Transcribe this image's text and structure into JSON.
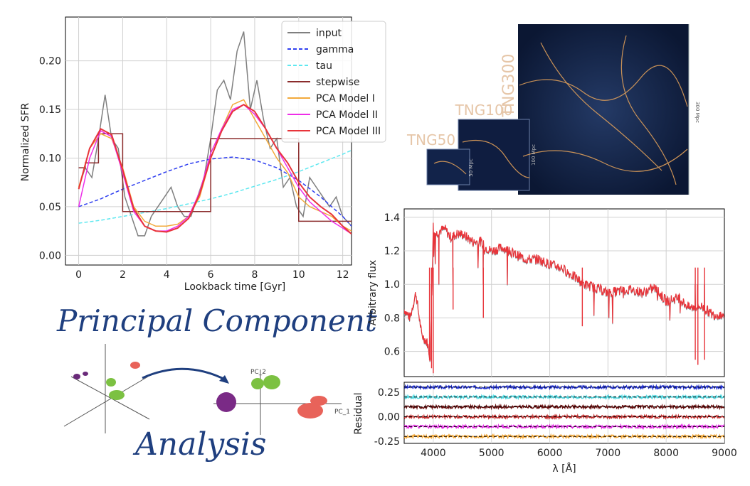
{
  "chart_data": [
    {
      "type": "line",
      "title": "",
      "xlabel": "Lookback time [Gyr]",
      "ylabel": "Normalized SFR",
      "xlim": [
        -0.6,
        12.4
      ],
      "ylim": [
        -0.01,
        0.245
      ],
      "xticks": [
        0,
        2,
        4,
        6,
        8,
        10,
        12
      ],
      "yticks": [
        0.0,
        0.05,
        0.1,
        0.15,
        0.2
      ],
      "xtick_labels": [
        "0",
        "2",
        "4",
        "6",
        "8",
        "10",
        "12"
      ],
      "ytick_labels": [
        "0.00",
        "0.05",
        "0.10",
        "0.15",
        "0.20"
      ],
      "grid": true,
      "legend_position": "top-right",
      "series": [
        {
          "name": "input",
          "color": "#7f7f7f",
          "style": "solid",
          "x": [
            0,
            0.3,
            0.6,
            0.9,
            1.2,
            1.5,
            1.8,
            2.1,
            2.4,
            2.7,
            3.0,
            3.3,
            3.6,
            3.9,
            4.2,
            4.5,
            4.8,
            5.1,
            5.4,
            5.7,
            6.0,
            6.3,
            6.6,
            6.9,
            7.2,
            7.5,
            7.8,
            8.1,
            8.4,
            8.7,
            9.0,
            9.3,
            9.6,
            9.9,
            10.2,
            10.5,
            10.8,
            11.1,
            11.4,
            11.7,
            12.0,
            12.4
          ],
          "values": [
            0.07,
            0.09,
            0.08,
            0.12,
            0.165,
            0.12,
            0.11,
            0.06,
            0.04,
            0.02,
            0.02,
            0.04,
            0.05,
            0.06,
            0.07,
            0.05,
            0.04,
            0.04,
            0.06,
            0.08,
            0.12,
            0.17,
            0.18,
            0.16,
            0.21,
            0.23,
            0.15,
            0.18,
            0.14,
            0.11,
            0.12,
            0.07,
            0.08,
            0.05,
            0.04,
            0.08,
            0.07,
            0.06,
            0.05,
            0.06,
            0.04,
            0.03
          ]
        },
        {
          "name": "gamma",
          "color": "#2f3ff0",
          "style": "dashed",
          "x": [
            0,
            1,
            2,
            3,
            4,
            5,
            6,
            7,
            8,
            9,
            10,
            11,
            12,
            12.4
          ],
          "values": [
            0.05,
            0.058,
            0.068,
            0.077,
            0.086,
            0.094,
            0.099,
            0.101,
            0.098,
            0.09,
            0.077,
            0.06,
            0.04,
            0.03
          ]
        },
        {
          "name": "tau",
          "color": "#5ee8f0",
          "style": "dashed",
          "x": [
            0,
            1,
            2,
            3,
            4,
            5,
            6,
            7,
            8,
            9,
            10,
            11,
            12,
            12.4
          ],
          "values": [
            0.033,
            0.036,
            0.04,
            0.044,
            0.048,
            0.053,
            0.058,
            0.064,
            0.071,
            0.078,
            0.086,
            0.095,
            0.104,
            0.108
          ]
        },
        {
          "name": "stepwise",
          "color": "#8b2c2c",
          "style": "step",
          "x": [
            0,
            0.3,
            0.9,
            1.5,
            2.0,
            6.0,
            10.0,
            12.4
          ],
          "values": [
            0.09,
            0.095,
            0.125,
            0.125,
            0.045,
            0.12,
            0.035,
            0.035
          ]
        },
        {
          "name": "PCA Model I",
          "color": "#f2a93b",
          "style": "solid",
          "x": [
            0,
            0.5,
            1.0,
            1.5,
            2.0,
            2.5,
            3.0,
            3.5,
            4.0,
            4.5,
            5.0,
            5.5,
            6.0,
            6.5,
            7.0,
            7.5,
            8.0,
            8.5,
            9.0,
            9.5,
            10.0,
            10.5,
            11.0,
            11.5,
            12.0,
            12.4
          ],
          "values": [
            0.07,
            0.11,
            0.125,
            0.12,
            0.09,
            0.05,
            0.035,
            0.03,
            0.03,
            0.032,
            0.04,
            0.06,
            0.1,
            0.13,
            0.155,
            0.16,
            0.14,
            0.12,
            0.1,
            0.085,
            0.06,
            0.05,
            0.045,
            0.04,
            0.03,
            0.025
          ]
        },
        {
          "name": "PCA Model II",
          "color": "#ee2ee8",
          "style": "solid",
          "x": [
            0,
            0.5,
            1.0,
            1.5,
            2.0,
            2.5,
            3.0,
            3.5,
            4.0,
            4.5,
            5.0,
            5.5,
            6.0,
            6.5,
            7.0,
            7.5,
            8.0,
            8.5,
            9.0,
            9.5,
            10.0,
            10.5,
            11.0,
            11.5,
            12.0,
            12.4
          ],
          "values": [
            0.05,
            0.1,
            0.128,
            0.122,
            0.085,
            0.045,
            0.03,
            0.025,
            0.025,
            0.03,
            0.04,
            0.065,
            0.105,
            0.13,
            0.15,
            0.155,
            0.145,
            0.13,
            0.11,
            0.09,
            0.07,
            0.055,
            0.045,
            0.035,
            0.028,
            0.022
          ]
        },
        {
          "name": "PCA Model III",
          "color": "#e8343a",
          "style": "solid",
          "x": [
            0,
            0.5,
            1.0,
            1.5,
            2.0,
            2.5,
            3.0,
            3.5,
            4.0,
            4.5,
            5.0,
            5.5,
            6.0,
            6.5,
            7.0,
            7.5,
            8.0,
            8.5,
            9.0,
            9.5,
            10.0,
            10.5,
            11.0,
            11.5,
            12.0,
            12.4
          ],
          "values": [
            0.068,
            0.11,
            0.13,
            0.124,
            0.088,
            0.048,
            0.03,
            0.025,
            0.024,
            0.028,
            0.038,
            0.063,
            0.1,
            0.128,
            0.148,
            0.155,
            0.148,
            0.13,
            0.11,
            0.095,
            0.075,
            0.06,
            0.05,
            0.042,
            0.03,
            0.022
          ]
        }
      ]
    },
    {
      "type": "line",
      "title": "",
      "xlabel": "λ [Å]",
      "ylabel": "Arbitrary flux",
      "xlim": [
        3500,
        9000
      ],
      "ylim": [
        0.45,
        1.45
      ],
      "yticks": [
        0.6,
        0.8,
        1.0,
        1.2,
        1.4
      ],
      "ytick_labels": [
        "0.6",
        "0.8",
        "1.0",
        "1.2",
        "1.4"
      ],
      "grid": true,
      "series": [
        {
          "name": "spectrum",
          "color": "#e8343a",
          "x": [
            3500,
            3600,
            3700,
            3800,
            3900,
            3950,
            4000,
            4050,
            4100,
            4200,
            4300,
            4400,
            4500,
            4700,
            4800,
            4900,
            5000,
            5200,
            5400,
            5600,
            5800,
            6000,
            6200,
            6400,
            6600,
            6800,
            7000,
            7200,
            7400,
            7600,
            7800,
            8000,
            8200,
            8400,
            8600,
            8800,
            9000
          ],
          "values": [
            0.85,
            0.8,
            0.95,
            0.7,
            0.65,
            0.55,
            1.35,
            1.3,
            1.32,
            1.33,
            1.28,
            1.3,
            1.3,
            1.25,
            1.26,
            1.22,
            1.2,
            1.22,
            1.18,
            1.15,
            1.15,
            1.12,
            1.1,
            1.05,
            1.0,
            0.98,
            0.95,
            0.96,
            0.97,
            0.95,
            0.98,
            0.9,
            0.92,
            0.86,
            0.87,
            0.82,
            0.82
          ]
        }
      ]
    },
    {
      "type": "scatter",
      "title": "",
      "xlabel": "λ [Å]",
      "ylabel": "Residual",
      "xlim": [
        3500,
        9000
      ],
      "ylim": [
        -0.27,
        0.35
      ],
      "xticks": [
        4000,
        5000,
        6000,
        7000,
        8000,
        9000
      ],
      "xtick_labels": [
        "4000",
        "5000",
        "6000",
        "7000",
        "8000",
        "9000"
      ],
      "yticks": [
        -0.25,
        0.0,
        0.25
      ],
      "ytick_labels": [
        "-0.25",
        "0.00",
        "0.25"
      ],
      "bands": [
        {
          "offset": 0.3,
          "color": "#2030d0"
        },
        {
          "offset": 0.2,
          "color": "#4fd8e0"
        },
        {
          "offset": 0.1,
          "color": "#6a1010"
        },
        {
          "offset": 0.0,
          "color": "#c03030"
        },
        {
          "offset": -0.1,
          "color": "#e030e0"
        },
        {
          "offset": -0.2,
          "color": "#f2a93b"
        }
      ]
    }
  ],
  "image": {
    "labels": [
      "TNG300",
      "TNG100",
      "TNG50"
    ],
    "scale_labels": [
      "300 Mpc",
      "100 Mpc",
      "50 Mpc"
    ]
  },
  "diagram": {
    "line1": "Principal Component",
    "line2": "Analysis",
    "axis_labels": [
      "PC_2",
      "PC_1"
    ]
  },
  "colors": {
    "label_accent": "#e6c6a8",
    "script": "#1f3f7f",
    "cosmic_bg": "#0d1a3a"
  }
}
